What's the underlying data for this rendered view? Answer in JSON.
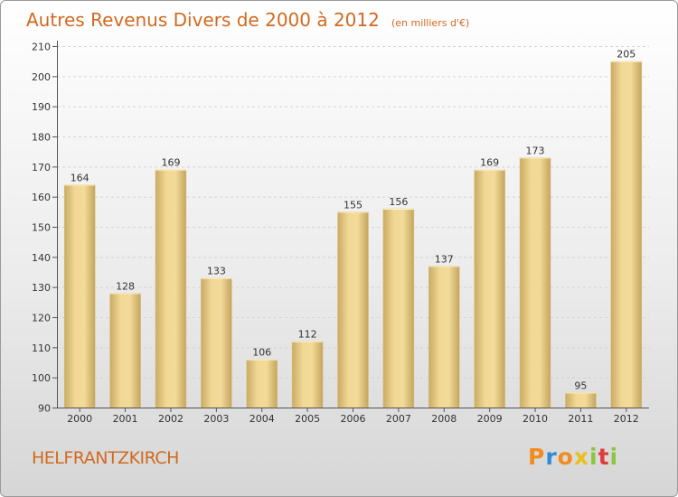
{
  "chart_data": {
    "type": "bar",
    "title": "Autres Revenus Divers de 2000 à 2012",
    "subtitle": "(en milliers d'€)",
    "categories": [
      "2000",
      "2001",
      "2002",
      "2003",
      "2004",
      "2005",
      "2006",
      "2007",
      "2008",
      "2009",
      "2010",
      "2011",
      "2012"
    ],
    "values": [
      164,
      128,
      169,
      133,
      106,
      112,
      155,
      156,
      137,
      169,
      173,
      95,
      205
    ],
    "ylim": [
      90,
      210
    ],
    "yticks": [
      90,
      100,
      110,
      120,
      130,
      140,
      150,
      160,
      170,
      180,
      190,
      200,
      210
    ],
    "grid": true,
    "xlabel": "",
    "ylabel": ""
  },
  "footer": {
    "location": "HELFRANTZKIRCH",
    "brand_letters": [
      {
        "ch": "P",
        "color": "#f28c1e"
      },
      {
        "ch": "r",
        "color": "#2e8bd6"
      },
      {
        "ch": "o",
        "color": "#f28c1e"
      },
      {
        "ch": "x",
        "color": "#e8c21a"
      },
      {
        "ch": "i",
        "color": "#8cc63f"
      },
      {
        "ch": "t",
        "color": "#e03a3a"
      },
      {
        "ch": "i",
        "color": "#8cc63f"
      }
    ]
  },
  "colors": {
    "bar_light": "#f3dc9a",
    "bar_dark": "#c8aa62",
    "title": "#d2691e"
  }
}
